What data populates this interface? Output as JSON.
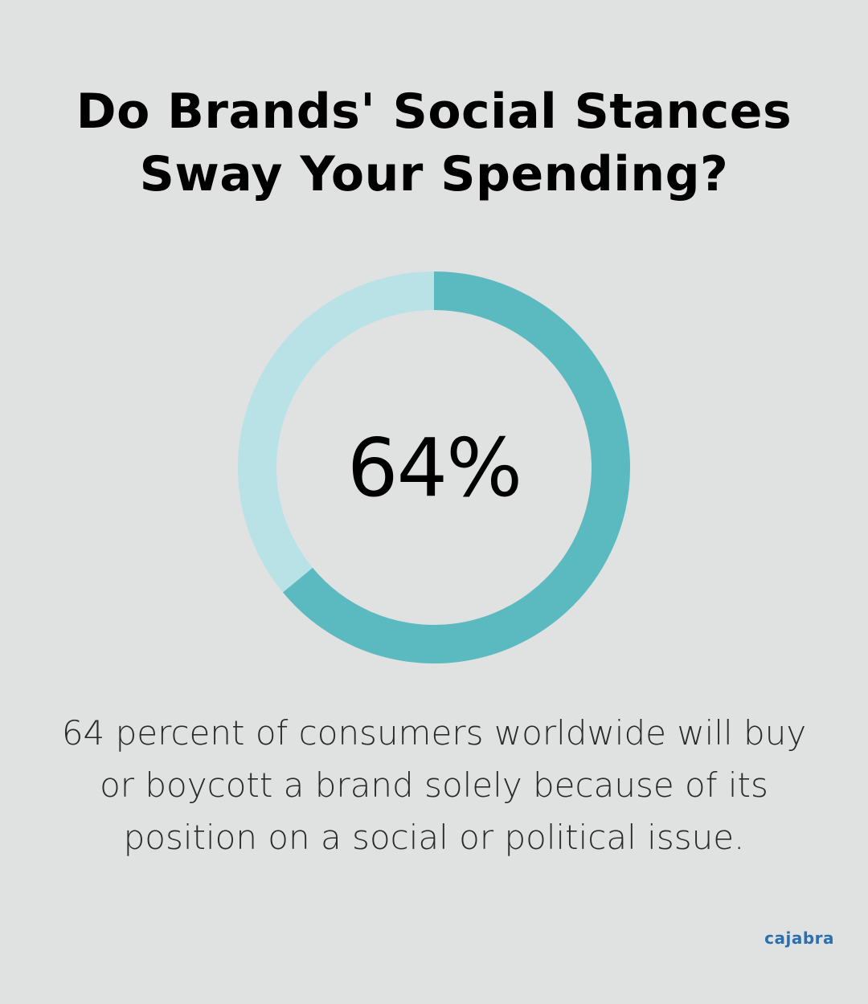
{
  "title_line1": "Do Brands' Social Stances",
  "title_line2": "Sway Your Spending?",
  "center_label": "64%",
  "caption_line1": "64 percent of consumers worldwide will buy",
  "caption_line2": "or boycott a brand solely because of its",
  "caption_line3": "position on a social or political issue.",
  "brand": "cajabra",
  "colors": {
    "background": "#e0e2e2",
    "accent": "#5bbac0",
    "track": "#b8e2e5",
    "brand": "#2b6fae"
  },
  "chart_data": {
    "type": "pie",
    "variant": "donut",
    "values": [
      64,
      36
    ],
    "value_unit": "percent",
    "center_label": "64%"
  }
}
